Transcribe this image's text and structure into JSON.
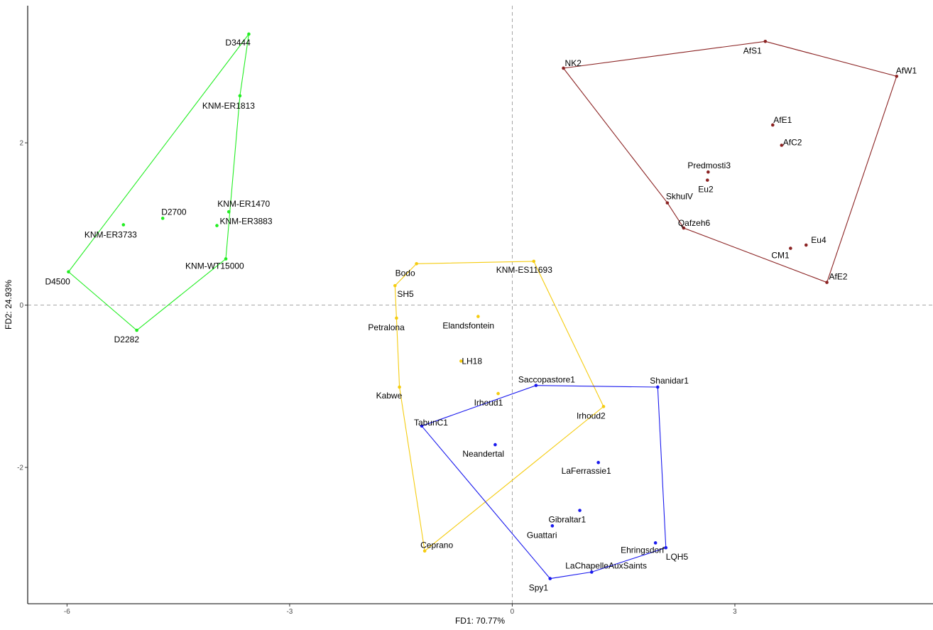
{
  "chart_data": {
    "type": "scatter",
    "xlabel": "FD1: 70.77%",
    "ylabel": "FD2: 24.93%",
    "xlim": [
      -6.53,
      5.67
    ],
    "ylim": [
      -3.68,
      3.69
    ],
    "xticks": [
      -6,
      -3,
      0,
      3
    ],
    "yticks": [
      -2,
      0,
      2
    ],
    "reference_lines": {
      "x": 0,
      "y": 0
    },
    "grid": false,
    "series": [
      {
        "color": "#22ee22",
        "hull": [
          "D3444",
          "D4500",
          "D2282",
          "KNM-WT15000",
          "KNM-ER1813"
        ],
        "points": [
          {
            "label": "D3444",
            "x": -3.55,
            "y": 3.34
          },
          {
            "label": "KNM-ER1813",
            "x": -3.67,
            "y": 2.58
          },
          {
            "label": "D2700",
            "x": -4.71,
            "y": 1.07
          },
          {
            "label": "KNM-ER1470",
            "x": -3.82,
            "y": 1.15
          },
          {
            "label": "KNM-ER3883",
            "x": -3.98,
            "y": 0.98
          },
          {
            "label": "KNM-ER3733",
            "x": -5.24,
            "y": 0.99
          },
          {
            "label": "KNM-WT15000",
            "x": -3.86,
            "y": 0.57
          },
          {
            "label": "D4500",
            "x": -5.98,
            "y": 0.41
          },
          {
            "label": "D2282",
            "x": -5.06,
            "y": -0.31
          }
        ]
      },
      {
        "color": "#f5cc10",
        "hull": [
          "Bodo",
          "KNM-ES11693",
          "Irhoud2",
          "Ceprano",
          "Kabwe",
          "Petralona",
          "SH5"
        ],
        "points": [
          {
            "label": "Bodo",
            "x": -1.29,
            "y": 0.51
          },
          {
            "label": "KNM-ES11693",
            "x": 0.29,
            "y": 0.54
          },
          {
            "label": "SH5",
            "x": -1.58,
            "y": 0.24
          },
          {
            "label": "Petralona",
            "x": -1.56,
            "y": -0.16
          },
          {
            "label": "Elandsfontein",
            "x": -0.46,
            "y": -0.14
          },
          {
            "label": "LH18",
            "x": -0.69,
            "y": -0.69
          },
          {
            "label": "Kabwe",
            "x": -1.52,
            "y": -1.01
          },
          {
            "label": "Irhoud1",
            "x": -0.19,
            "y": -1.09
          },
          {
            "label": "Irhoud2",
            "x": 1.23,
            "y": -1.25
          },
          {
            "label": "Ceprano",
            "x": -1.18,
            "y": -3.03
          }
        ]
      },
      {
        "color": "#1a1aee",
        "hull": [
          "Saccopastore1",
          "Shanidar1",
          "LQH5",
          "LaChapelleAuxSaints",
          "Spy1",
          "TabunC1"
        ],
        "points": [
          {
            "label": "Saccopastore1",
            "x": 0.32,
            "y": -0.99
          },
          {
            "label": "Shanidar1",
            "x": 1.96,
            "y": -1.01
          },
          {
            "label": "TabunC1",
            "x": -1.22,
            "y": -1.49
          },
          {
            "label": "Neandertal",
            "x": -0.23,
            "y": -1.72
          },
          {
            "label": "LaFerrassie1",
            "x": 1.16,
            "y": -1.94
          },
          {
            "label": "Gibraltar1",
            "x": 0.91,
            "y": -2.53
          },
          {
            "label": "Guattari",
            "x": 0.54,
            "y": -2.72
          },
          {
            "label": "Ehringsdorf",
            "x": 1.93,
            "y": -2.93
          },
          {
            "label": "LQH5",
            "x": 2.07,
            "y": -2.99
          },
          {
            "label": "LaChapelleAuxSaints",
            "x": 1.07,
            "y": -3.29
          },
          {
            "label": "Spy1",
            "x": 0.51,
            "y": -3.37
          }
        ]
      },
      {
        "color": "#8b2323",
        "hull": [
          "AfS1",
          "AfW1",
          "AfE2",
          "Qafzeh6",
          "SkhulV",
          "NK2"
        ],
        "points": [
          {
            "label": "AfS1",
            "x": 3.41,
            "y": 3.25
          },
          {
            "label": "NK2",
            "x": 0.69,
            "y": 2.92
          },
          {
            "label": "AfW1",
            "x": 5.18,
            "y": 2.82
          },
          {
            "label": "AfE1",
            "x": 3.51,
            "y": 2.22
          },
          {
            "label": "AfC2",
            "x": 3.63,
            "y": 1.97
          },
          {
            "label": "Predmosti3",
            "x": 2.64,
            "y": 1.64
          },
          {
            "label": "Eu2",
            "x": 2.63,
            "y": 1.54
          },
          {
            "label": "SkhulV",
            "x": 2.09,
            "y": 1.26
          },
          {
            "label": "Qafzeh6",
            "x": 2.31,
            "y": 0.95
          },
          {
            "label": "Eu4",
            "x": 3.96,
            "y": 0.74
          },
          {
            "label": "CM1",
            "x": 3.75,
            "y": 0.7
          },
          {
            "label": "AfE2",
            "x": 4.24,
            "y": 0.28
          }
        ]
      }
    ]
  }
}
